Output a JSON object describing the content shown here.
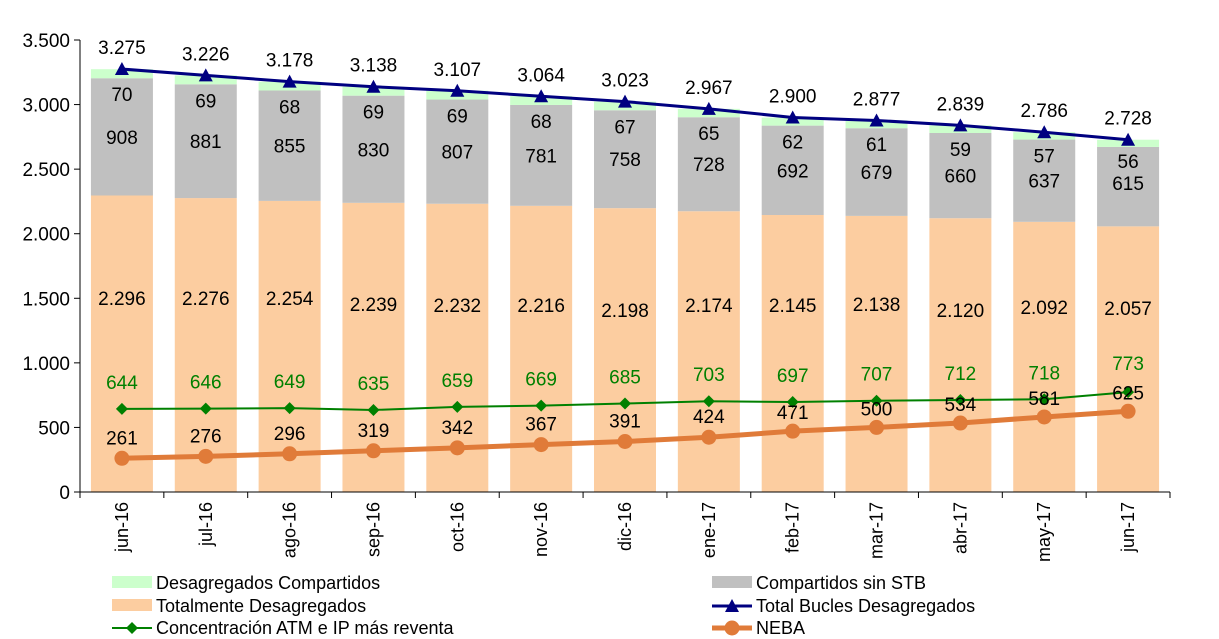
{
  "chart_data": {
    "type": "bar",
    "stacked": true,
    "categories": [
      "jun-16",
      "jul-16",
      "ago-16",
      "sep-16",
      "oct-16",
      "nov-16",
      "dic-16",
      "ene-17",
      "feb-17",
      "mar-17",
      "abr-17",
      "may-17",
      "jun-17"
    ],
    "ylim": [
      0,
      3500
    ],
    "yticks": [
      0,
      500,
      1000,
      1500,
      2000,
      2500,
      3000,
      3500
    ],
    "ytick_labels": [
      "0",
      "500",
      "1.000",
      "1.500",
      "2.000",
      "2.500",
      "3.000",
      "3.500"
    ],
    "series": [
      {
        "name": "Totalmente Desagregados",
        "kind": "bar",
        "color": "#FCCDA0",
        "values": [
          2296,
          2276,
          2254,
          2239,
          2232,
          2216,
          2198,
          2174,
          2145,
          2138,
          2120,
          2092,
          2057
        ],
        "labels": [
          "2.296",
          "2.276",
          "2.254",
          "2.239",
          "2.232",
          "2.216",
          "2.198",
          "2.174",
          "2.145",
          "2.138",
          "2.120",
          "2.092",
          "2.057"
        ]
      },
      {
        "name": "Compartidos sin STB",
        "kind": "bar",
        "color": "#C0C0C0",
        "values": [
          908,
          881,
          855,
          830,
          807,
          781,
          758,
          728,
          692,
          679,
          660,
          637,
          615
        ],
        "labels": [
          "908",
          "881",
          "855",
          "830",
          "807",
          "781",
          "758",
          "728",
          "692",
          "679",
          "660",
          "637",
          "615"
        ]
      },
      {
        "name": "Desagregados Compartidos",
        "kind": "bar",
        "color": "#CCFFCC",
        "values": [
          70,
          69,
          68,
          69,
          69,
          68,
          67,
          65,
          62,
          61,
          59,
          57,
          56
        ],
        "labels": [
          "70",
          "69",
          "68",
          "69",
          "69",
          "68",
          "67",
          "65",
          "62",
          "61",
          "59",
          "57",
          "56"
        ]
      },
      {
        "name": "Total Bucles Desagregados",
        "kind": "line",
        "color": "#000080",
        "values": [
          3275,
          3226,
          3178,
          3138,
          3107,
          3064,
          3023,
          2967,
          2900,
          2877,
          2839,
          2786,
          2728
        ],
        "labels": [
          "3.275",
          "3.226",
          "3.178",
          "3.138",
          "3.107",
          "3.064",
          "3.023",
          "2.967",
          "2.900",
          "2.877",
          "2.839",
          "2.786",
          "2.728"
        ]
      },
      {
        "name": "Concentración ATM e IP más reventa",
        "kind": "line",
        "color": "#008000",
        "values": [
          644,
          646,
          649,
          635,
          659,
          669,
          685,
          703,
          697,
          707,
          712,
          718,
          773
        ],
        "labels": [
          "644",
          "646",
          "649",
          "635",
          "659",
          "669",
          "685",
          "703",
          "697",
          "707",
          "712",
          "718",
          "773"
        ]
      },
      {
        "name": "NEBA",
        "kind": "line",
        "color": "#E07B39",
        "values": [
          261,
          276,
          296,
          319,
          342,
          367,
          391,
          424,
          471,
          500,
          534,
          581,
          625
        ],
        "labels": [
          "261",
          "276",
          "296",
          "319",
          "342",
          "367",
          "391",
          "424",
          "471",
          "500",
          "534",
          "581",
          "625"
        ]
      }
    ],
    "legend": {
      "placement": "bottom"
    }
  }
}
